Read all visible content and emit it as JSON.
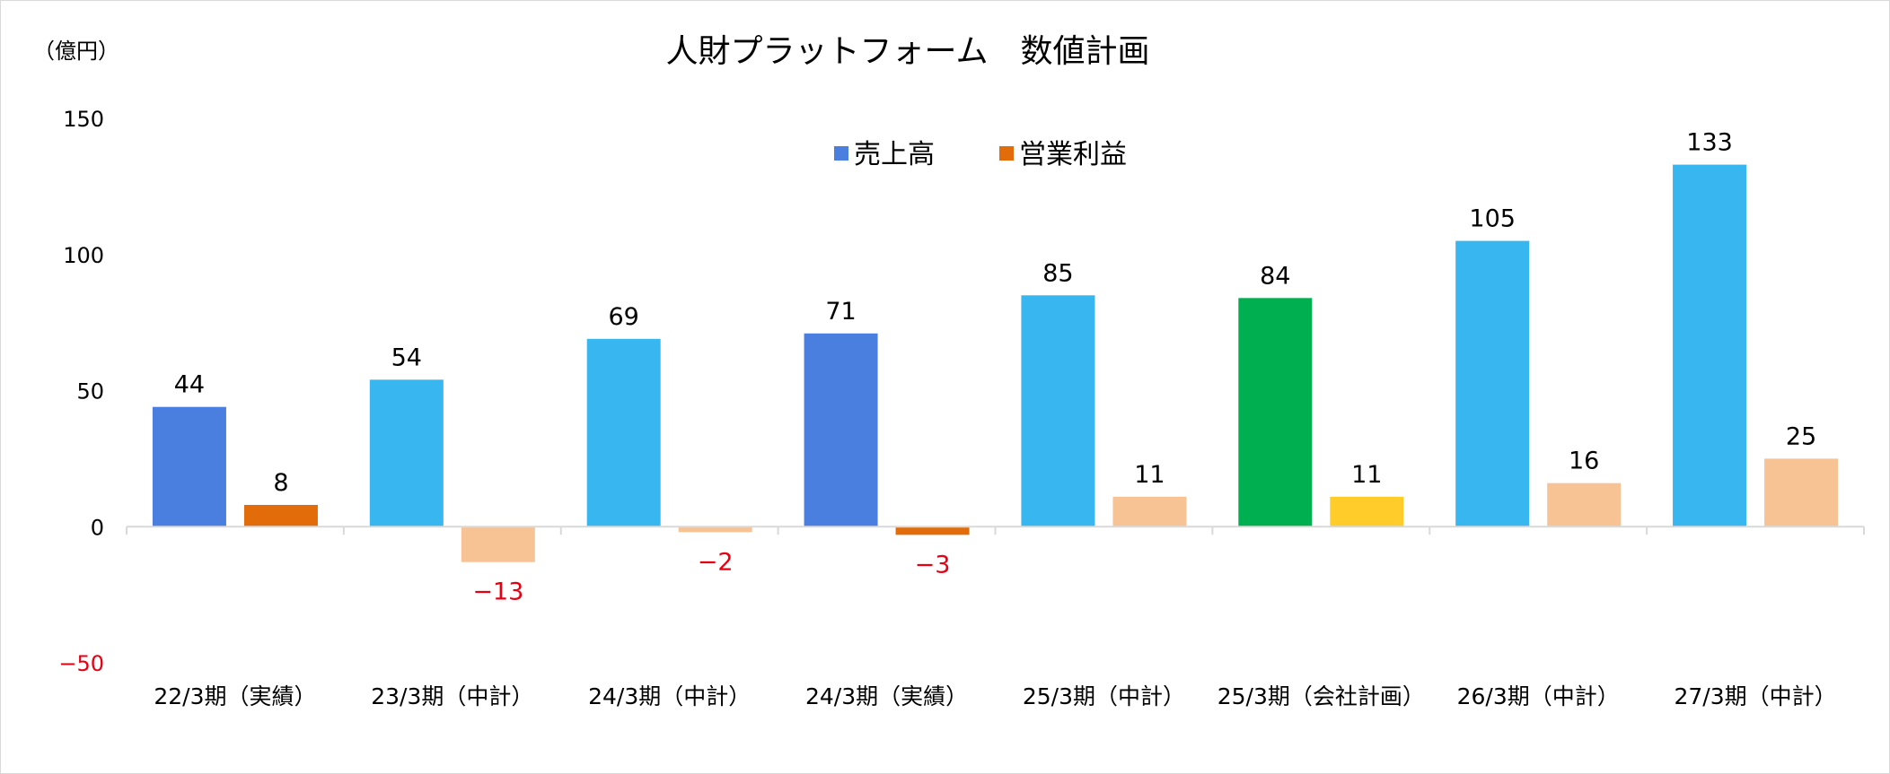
{
  "chart_data": {
    "type": "bar",
    "title": "人財プラットフォーム　数値計画",
    "unit_label": "（億円）",
    "categories": [
      "22/3期（実績）",
      "23/3期（中計）",
      "24/3期（中計）",
      "24/3期（実績）",
      "25/3期（中計）",
      "25/3期（会社計画）",
      "26/3期（中計）",
      "27/3期（中計）"
    ],
    "series": [
      {
        "name": "売上高",
        "legend_color": "#4a7fe0",
        "values": [
          44,
          54,
          69,
          71,
          85,
          84,
          105,
          133
        ],
        "labels": [
          "44",
          "54",
          "69",
          "71",
          "85",
          "84",
          "105",
          "133"
        ],
        "colors": [
          "#4a7fe0",
          "#38b6f0",
          "#38b6f0",
          "#4a7fe0",
          "#38b6f0",
          "#00b050",
          "#38b6f0",
          "#38b6f0"
        ]
      },
      {
        "name": "営業利益",
        "legend_color": "#e36c0a",
        "values": [
          8,
          -13,
          -2,
          -3,
          11,
          11,
          16,
          25
        ],
        "labels": [
          "8",
          "−13",
          "−2",
          "−3",
          "11",
          "11",
          "16",
          "25"
        ],
        "colors": [
          "#e36c0a",
          "#f8c394",
          "#f8c394",
          "#e36c0a",
          "#f8c394",
          "#ffcc29",
          "#f8c394",
          "#f8c394"
        ]
      }
    ],
    "yticks": [
      {
        "value": 150,
        "label": "150"
      },
      {
        "value": 100,
        "label": "100"
      },
      {
        "value": 50,
        "label": "50"
      },
      {
        "value": 0,
        "label": "0"
      },
      {
        "value": -50,
        "label": "−50"
      }
    ],
    "ylim": [
      -50,
      150
    ],
    "grid": false,
    "legend_position": "top-center",
    "negative_label_color": "#e60012",
    "axis_color": "#d9d9d9"
  }
}
